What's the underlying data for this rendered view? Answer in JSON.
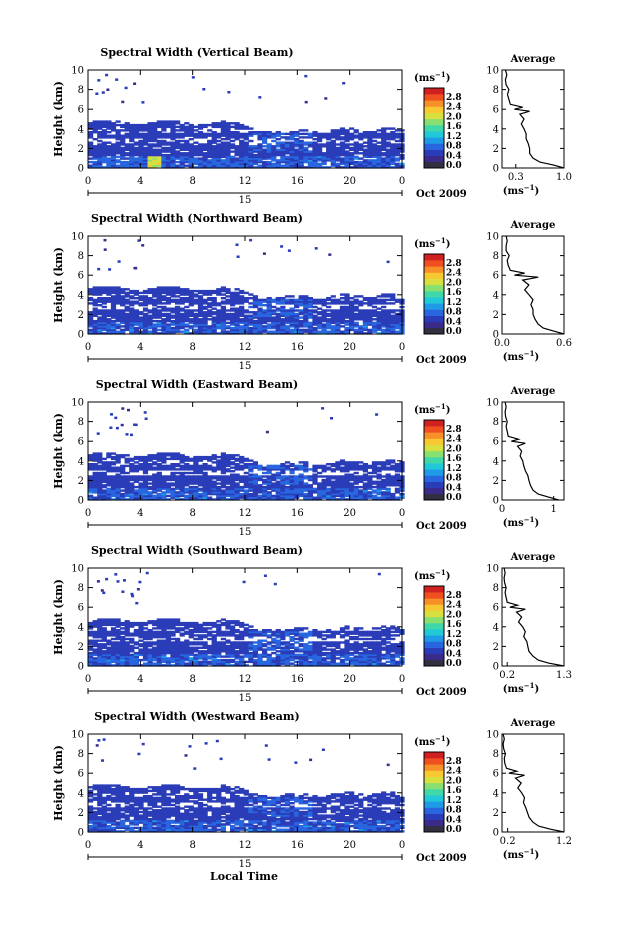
{
  "figure": {
    "xlabel": "Local Time"
  },
  "chart_data": [
    {
      "type": "heatmap",
      "title": "Spectral Width (Vertical Beam)",
      "ylabel": "Height (km)",
      "xlim": [
        0,
        24
      ],
      "ylim": [
        0,
        10
      ],
      "xticks": [
        "0",
        "4",
        "8",
        "12",
        "16",
        "20",
        "0"
      ],
      "yticks": [
        "0",
        "2",
        "4",
        "6",
        "8",
        "10"
      ],
      "date_marker": "15",
      "date_label": "Oct 2009",
      "colorbar": {
        "unit": "(ms",
        "exp": "−1",
        "unit_close": ")",
        "ticks": [
          "0.0",
          "0.4",
          "0.8",
          "1.2",
          "1.6",
          "2.0",
          "2.4",
          "2.8"
        ]
      },
      "average": {
        "title": "Average",
        "xlabel": "(ms",
        "exp": "−1",
        "xlabel_close": ")",
        "xlim": [
          0.1,
          1.0
        ],
        "xticks": [
          "0.3",
          "1.0"
        ],
        "xtick_values": [
          0.3,
          1.0
        ],
        "yticks": [
          "0",
          "2",
          "4",
          "6",
          "8",
          "10"
        ]
      },
      "profile": {
        "height": [
          0,
          0.3,
          0.6,
          1,
          1.5,
          2,
          2.5,
          3,
          3.5,
          4,
          4.5,
          5,
          5.5,
          5.8,
          6,
          6.2,
          6.5,
          7,
          7.5,
          8,
          8.5,
          9,
          9.5,
          10
        ],
        "width": [
          1.0,
          0.85,
          0.65,
          0.55,
          0.5,
          0.5,
          0.48,
          0.45,
          0.45,
          0.42,
          0.38,
          0.42,
          0.36,
          0.5,
          0.28,
          0.4,
          0.22,
          0.2,
          0.18,
          0.2,
          0.16,
          0.15,
          0.17,
          0.15
        ]
      }
    },
    {
      "type": "heatmap",
      "title": "Spectral Width (Northward Beam)",
      "ylabel": "Height (km)",
      "xlim": [
        0,
        24
      ],
      "ylim": [
        0,
        10
      ],
      "xticks": [
        "0",
        "4",
        "8",
        "12",
        "16",
        "20",
        "0"
      ],
      "yticks": [
        "0",
        "2",
        "4",
        "6",
        "8",
        "10"
      ],
      "date_marker": "15",
      "date_label": "Oct 2009",
      "colorbar": {
        "unit": "(ms",
        "exp": "−1",
        "unit_close": ")",
        "ticks": [
          "0.0",
          "0.4",
          "0.8",
          "1.2",
          "1.6",
          "2.0",
          "2.4",
          "2.8"
        ]
      },
      "average": {
        "title": "Average",
        "xlabel": "(ms",
        "exp": "−1",
        "xlabel_close": ")",
        "xlim": [
          0.0,
          0.6
        ],
        "xticks": [
          "0.0",
          "0.6"
        ],
        "xtick_values": [
          0.0,
          0.6
        ],
        "yticks": [
          "0",
          "2",
          "4",
          "6",
          "8",
          "10"
        ]
      },
      "profile": {
        "height": [
          0,
          0.3,
          0.6,
          1,
          1.5,
          2,
          2.5,
          3,
          3.5,
          4,
          4.5,
          5,
          5.5,
          5.8,
          6,
          6.2,
          6.5,
          7,
          7.5,
          8,
          8.5,
          9,
          9.5,
          10
        ],
        "width": [
          0.6,
          0.5,
          0.4,
          0.35,
          0.32,
          0.3,
          0.3,
          0.28,
          0.3,
          0.26,
          0.22,
          0.26,
          0.2,
          0.35,
          0.12,
          0.22,
          0.08,
          0.06,
          0.05,
          0.07,
          0.04,
          0.04,
          0.05,
          0.04
        ]
      }
    },
    {
      "type": "heatmap",
      "title": "Spectral Width (Eastward Beam)",
      "ylabel": "Height (km)",
      "xlim": [
        0,
        24
      ],
      "ylim": [
        0,
        10
      ],
      "xticks": [
        "0",
        "4",
        "8",
        "12",
        "16",
        "20",
        "0"
      ],
      "yticks": [
        "0",
        "2",
        "4",
        "6",
        "8",
        "10"
      ],
      "date_marker": "15",
      "date_label": "Oct 2009",
      "colorbar": {
        "unit": "(ms",
        "exp": "−1",
        "unit_close": ")",
        "ticks": [
          "0.0",
          "0.4",
          "0.8",
          "1.2",
          "1.6",
          "2.0",
          "2.4",
          "2.8"
        ]
      },
      "average": {
        "title": "Average",
        "xlabel": "(ms",
        "exp": "−1",
        "xlabel_close": ")",
        "xlim": [
          0,
          1.2
        ],
        "xticks": [
          "0",
          "1"
        ],
        "xtick_values": [
          0,
          1
        ],
        "yticks": [
          "0",
          "2",
          "4",
          "6",
          "8",
          "10"
        ]
      },
      "profile": {
        "height": [
          0,
          0.3,
          0.6,
          1,
          1.5,
          2,
          2.5,
          3,
          3.5,
          4,
          4.5,
          5,
          5.5,
          5.8,
          6,
          6.2,
          6.5,
          7,
          7.5,
          8,
          8.5,
          9,
          9.5,
          10
        ],
        "width": [
          1.1,
          0.9,
          0.7,
          0.6,
          0.55,
          0.52,
          0.5,
          0.45,
          0.42,
          0.4,
          0.35,
          0.38,
          0.3,
          0.45,
          0.18,
          0.32,
          0.12,
          0.1,
          0.08,
          0.1,
          0.07,
          0.06,
          0.08,
          0.06
        ]
      }
    },
    {
      "type": "heatmap",
      "title": "Spectral Width (Southward Beam)",
      "ylabel": "Height (km)",
      "xlim": [
        0,
        24
      ],
      "ylim": [
        0,
        10
      ],
      "xticks": [
        "0",
        "4",
        "8",
        "12",
        "16",
        "20",
        "0"
      ],
      "yticks": [
        "0",
        "2",
        "4",
        "6",
        "8",
        "10"
      ],
      "date_marker": "15",
      "date_label": "Oct 2009",
      "colorbar": {
        "unit": "(ms",
        "exp": "−1",
        "unit_close": ")",
        "ticks": [
          "0.0",
          "0.4",
          "0.8",
          "1.2",
          "1.6",
          "2.0",
          "2.4",
          "2.8"
        ]
      },
      "average": {
        "title": "Average",
        "xlabel": "(ms",
        "exp": "−1",
        "xlabel_close": ")",
        "xlim": [
          0.1,
          1.3
        ],
        "xticks": [
          "0.2",
          "1.3"
        ],
        "xtick_values": [
          0.2,
          1.3
        ],
        "yticks": [
          "0",
          "2",
          "4",
          "6",
          "8",
          "10"
        ]
      },
      "profile": {
        "height": [
          0,
          0.3,
          0.6,
          1,
          1.5,
          2,
          2.5,
          3,
          3.5,
          4,
          4.5,
          5,
          5.5,
          5.8,
          6,
          6.2,
          6.5,
          7,
          7.5,
          8,
          8.5,
          9,
          9.5,
          10
        ],
        "width": [
          1.3,
          1.0,
          0.8,
          0.7,
          0.62,
          0.6,
          0.58,
          0.52,
          0.55,
          0.5,
          0.42,
          0.48,
          0.38,
          0.55,
          0.25,
          0.4,
          0.2,
          0.18,
          0.16,
          0.18,
          0.15,
          0.14,
          0.16,
          0.14
        ]
      }
    },
    {
      "type": "heatmap",
      "title": "Spectral Width (Westward Beam)",
      "ylabel": "Height (km)",
      "xlim": [
        0,
        24
      ],
      "ylim": [
        0,
        10
      ],
      "xticks": [
        "0",
        "4",
        "8",
        "12",
        "16",
        "20",
        "0"
      ],
      "yticks": [
        "0",
        "2",
        "4",
        "6",
        "8",
        "10"
      ],
      "date_marker": "15",
      "date_label": "Oct 2009",
      "colorbar": {
        "unit": "(ms",
        "exp": "−1",
        "unit_close": ")",
        "ticks": [
          "0.0",
          "0.4",
          "0.8",
          "1.2",
          "1.6",
          "2.0",
          "2.4",
          "2.8"
        ]
      },
      "average": {
        "title": "Average",
        "xlabel": "(ms",
        "exp": "−1",
        "xlabel_close": ")",
        "xlim": [
          0.1,
          1.2
        ],
        "xticks": [
          "0.2",
          "1.2"
        ],
        "xtick_values": [
          0.2,
          1.2
        ],
        "yticks": [
          "0",
          "2",
          "4",
          "6",
          "8",
          "10"
        ]
      },
      "profile": {
        "height": [
          0,
          0.3,
          0.6,
          1,
          1.5,
          2,
          2.5,
          3,
          3.5,
          4,
          4.5,
          5,
          5.5,
          5.8,
          6,
          6.2,
          6.5,
          7,
          7.5,
          8,
          8.5,
          9,
          9.5,
          10
        ],
        "width": [
          1.2,
          0.95,
          0.75,
          0.65,
          0.58,
          0.55,
          0.52,
          0.48,
          0.5,
          0.45,
          0.38,
          0.44,
          0.34,
          0.5,
          0.22,
          0.36,
          0.18,
          0.15,
          0.14,
          0.16,
          0.13,
          0.12,
          0.14,
          0.12
        ]
      }
    }
  ]
}
